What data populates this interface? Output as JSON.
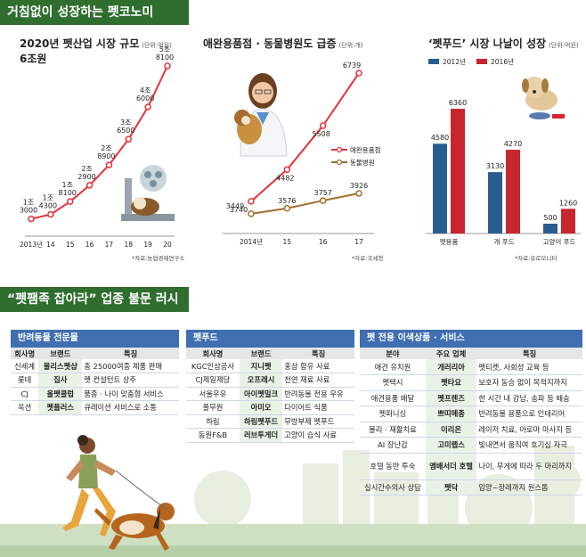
{
  "header": {
    "title": "거침없이 성장하는 펫코노미",
    "section2_title": "“펫팸족 잡아라” 업종 불문 러시"
  },
  "colors": {
    "banner": "#2f6e2e",
    "line_red": "#e8323a",
    "line_brown": "#a26d2c",
    "bar_blue": "#2a5d8f",
    "bar_red": "#c8262e",
    "panel_blue": "#3f6fb0"
  },
  "charts": {
    "pet_industry": {
      "title": "2020년 펫산업 시장 규모",
      "title_line2": "6조원",
      "unit": "(단위:억원)",
      "source": "*자료:농협경제연구소"
    },
    "supplies_hospitals": {
      "title": "애완용품점 · 동물병원도 급증",
      "unit": "(단위:개)",
      "source": "*자료:국세청"
    },
    "pet_food": {
      "title": "‘펫푸드’ 시장 나날이 성장",
      "unit": "(단위:억원)",
      "source": "*자료:유로모니터"
    }
  },
  "chart_data": [
    {
      "type": "line",
      "title": "2020년 펫산업 시장 규모 6조원",
      "unit": "(단위:억원)",
      "categories": [
        "2013년",
        "14",
        "15",
        "16",
        "17",
        "18",
        "19",
        "20"
      ],
      "series": [
        {
          "values": [
            13000,
            14300,
            18100,
            22900,
            28900,
            36500,
            46000,
            58100
          ]
        }
      ],
      "labels_top": [
        "1조",
        "1조",
        "1조",
        "2조",
        "2조",
        "3조",
        "4조",
        "5조"
      ],
      "labels_bottom": [
        "3000",
        "4300",
        "8100",
        "2900",
        "8900",
        "6500",
        "6000",
        "8100"
      ],
      "source": "*자료:농협경제연구소"
    },
    {
      "type": "line",
      "title": "애완용품점 · 동물병원도 급증",
      "unit": "(단위:개)",
      "categories": [
        "2014년",
        "15",
        "16",
        "17"
      ],
      "series": [
        {
          "name": "애완용품점",
          "values": [
            3740,
            4482,
            5508,
            6739
          ]
        },
        {
          "name": "동물병원",
          "values": [
            3449,
            3576,
            3757,
            3926
          ]
        }
      ],
      "legend": "right",
      "source": "*자료:국세청"
    },
    {
      "type": "bar",
      "title": "‘펫푸드’ 시장 나날이 성장",
      "unit": "(단위:억원)",
      "categories": [
        "펫용품",
        "개 푸드",
        "고양이 푸드"
      ],
      "series": [
        {
          "name": "2012년",
          "values": [
            4580,
            3130,
            500
          ]
        },
        {
          "name": "2016년",
          "values": [
            6360,
            4270,
            1260
          ]
        }
      ],
      "legend": "top",
      "source": "*자료:유로모니터"
    }
  ],
  "panels": {
    "specialty": {
      "title": "반려동물 전문몰",
      "headers": [
        "회사명",
        "브랜드",
        "특징"
      ],
      "rows": [
        [
          "신세계",
          "몰리스펫샵",
          "총 25000여종 제품 판매"
        ],
        [
          "롯데",
          "집사",
          "펫 컨설턴트 상주"
        ],
        [
          "CJ",
          "올펫클럽",
          "품종 · 나이 맞춤형 서비스"
        ],
        [
          "옥션",
          "펫플러스",
          "큐레이션 서비스로 소통"
        ]
      ]
    },
    "petfood": {
      "title": "펫푸드",
      "headers": [
        "회사명",
        "브랜드",
        "특징"
      ],
      "rows": [
        [
          "KGC인삼공사",
          "지니펫",
          "홍삼 함유 사료"
        ],
        [
          "CJ제일제당",
          "오프레시",
          "천연 재료 사료"
        ],
        [
          "서울우유",
          "아이펫밀크",
          "반려동물 전용 우유"
        ],
        [
          "풀무원",
          "아미오",
          "다이어트 식품"
        ],
        [
          "하림",
          "하림펫푸드",
          "무방부제 펫푸드"
        ],
        [
          "동원F&B",
          "러브투게더",
          "고양이 습식 사료"
        ]
      ]
    },
    "services": {
      "title": "펫 전용 이색상품 · 서비스",
      "headers": [
        "분야",
        "주요 업체",
        "특징"
      ],
      "rows": [
        [
          "애견 유치원",
          "개러리아",
          "펫티켓, 사회성 교육 등"
        ],
        [
          "펫택시",
          "펫타요",
          "보호자 동승 없이 목적지까지"
        ],
        [
          "애견용품 배달",
          "펫프렌즈",
          "한 시간 내 강남, 송파 등 배송"
        ],
        [
          "펫퍼니싱",
          "쁘띠메종",
          "반려동물 용품으로 인테리어"
        ],
        [
          "물리 · 재활치료",
          "이리온",
          "레이저 치료, 아로마 마사지 등"
        ],
        [
          "AI 장난감",
          "고미랩스",
          "빛내면서 움직여 호기심 자극"
        ],
        [
          "호텔 동반 투숙",
          "앰배서더 호텔",
          "나이, 무게에 따라 두 마리까지"
        ],
        [
          "실시간수의사 상담",
          "펫닥",
          "입양~장례까지 원스톱"
        ]
      ]
    }
  }
}
